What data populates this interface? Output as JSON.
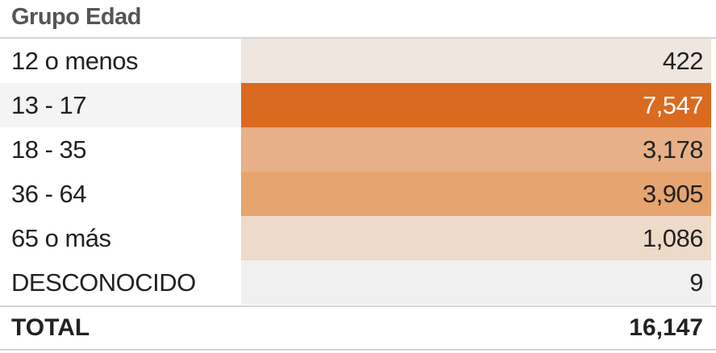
{
  "chart_data": {
    "type": "table",
    "column_header": "Grupo Edad",
    "rows": [
      {
        "label": "12 o menos",
        "value": "422",
        "color": "#efe6e0"
      },
      {
        "label": "13 - 17",
        "value": "7,547",
        "color": "#d96a20"
      },
      {
        "label": "18 - 35",
        "value": "3,178",
        "color": "#e8b088"
      },
      {
        "label": "36 - 64",
        "value": "3,905",
        "color": "#e6a46e"
      },
      {
        "label": "65 o más",
        "value": "1,086",
        "color": "#eedac9"
      },
      {
        "label": "DESCONOCIDO",
        "value": "9",
        "color": "#f0f0f0"
      }
    ],
    "total": {
      "label": "TOTAL",
      "value": "16,147"
    },
    "highlighted_row": "13 - 17"
  }
}
